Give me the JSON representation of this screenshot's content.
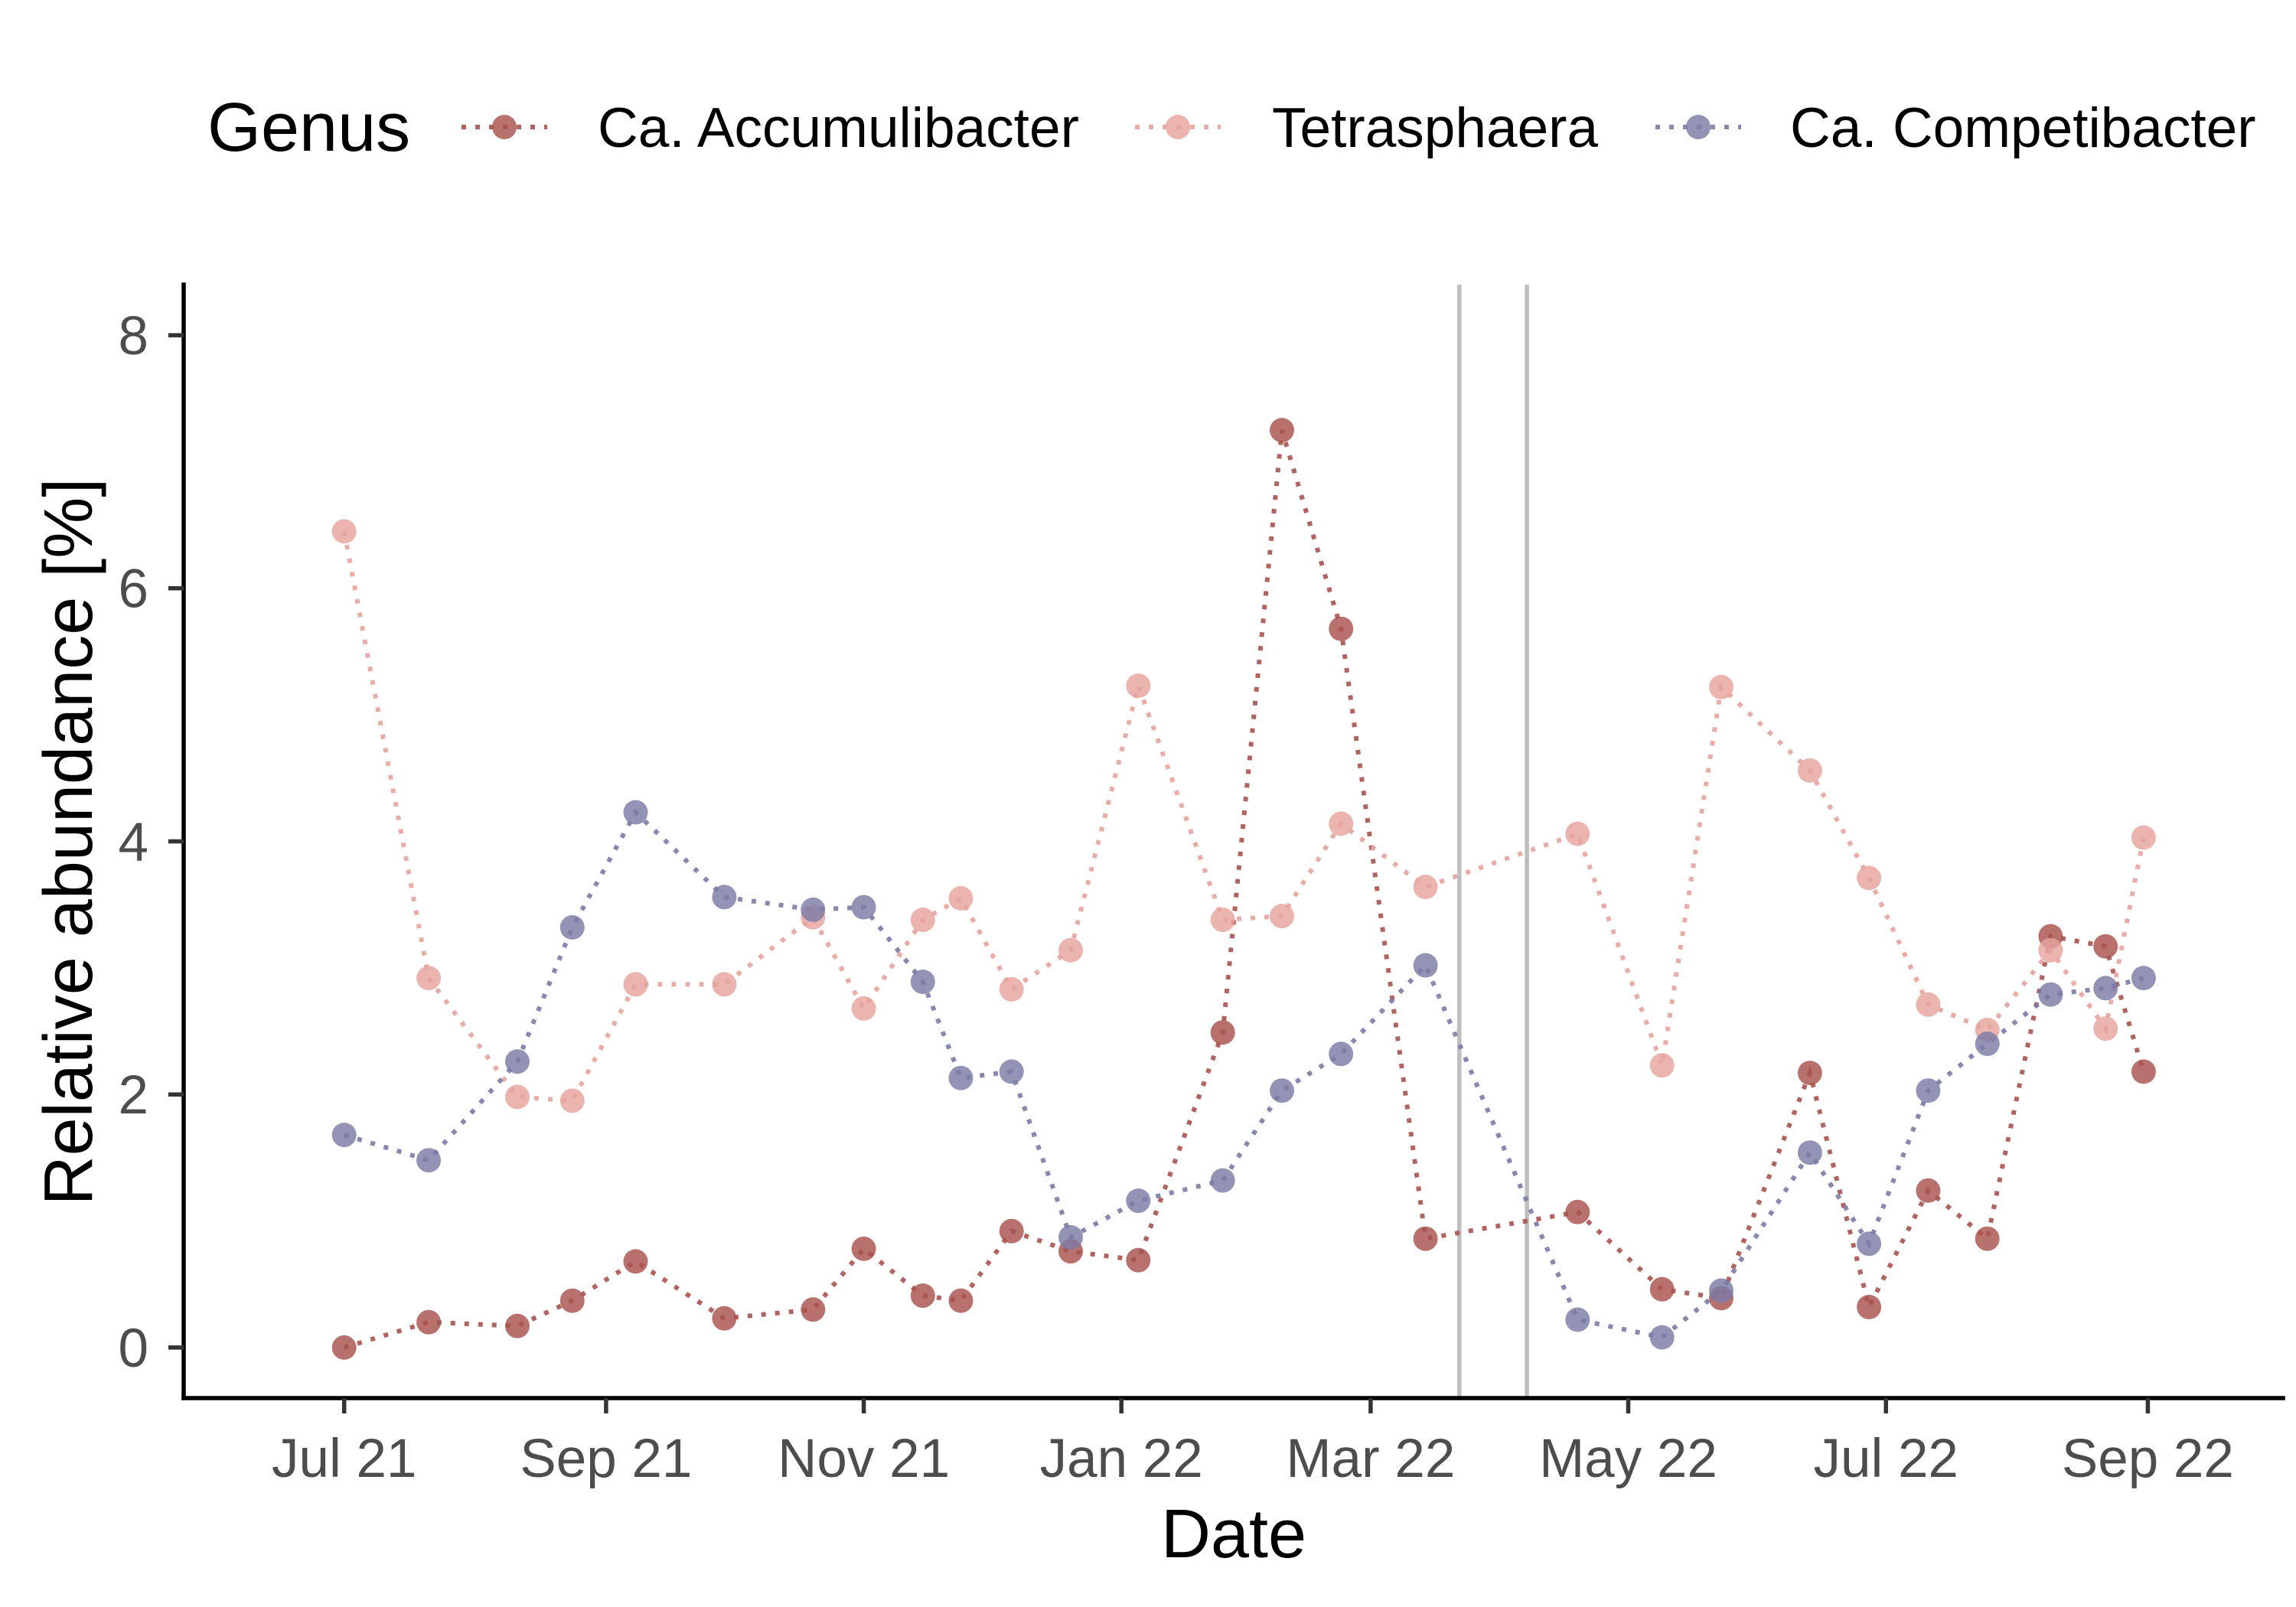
{
  "chart_data": {
    "type": "line",
    "markers": true,
    "line_style": "dotted",
    "xlabel": "Date",
    "ylabel": "Relative abundance [%]",
    "x_scale": "date",
    "xlim": [
      "2021-05-24",
      "2022-10-03"
    ],
    "ylim": [
      -0.4,
      8.4
    ],
    "x_ticks": [
      {
        "date": "2021-07-01",
        "label": "Jul 21"
      },
      {
        "date": "2021-09-01",
        "label": "Sep 21"
      },
      {
        "date": "2021-11-01",
        "label": "Nov 21"
      },
      {
        "date": "2022-01-01",
        "label": "Jan 22"
      },
      {
        "date": "2022-03-01",
        "label": "Mar 22"
      },
      {
        "date": "2022-05-01",
        "label": "May 22"
      },
      {
        "date": "2022-07-01",
        "label": "Jul 22"
      },
      {
        "date": "2022-09-01",
        "label": "Sep 22"
      }
    ],
    "y_ticks": [
      0,
      2,
      4,
      6,
      8
    ],
    "grid": false,
    "legend": {
      "title": "Genus",
      "position": "top"
    },
    "vlines": [
      "2022-03-22",
      "2022-04-07"
    ],
    "vline_color": "#bebebe",
    "x": [
      "2021-07-01",
      "2021-07-21",
      "2021-08-11",
      "2021-08-24",
      "2021-09-08",
      "2021-09-29",
      "2021-10-20",
      "2021-11-01",
      "2021-11-15",
      "2021-11-24",
      "2021-12-06",
      "2021-12-20",
      "2022-01-05",
      "2022-01-25",
      "2022-02-08",
      "2022-02-22",
      "2022-03-14",
      "2022-04-19",
      "2022-05-09",
      "2022-05-23",
      "2022-06-13",
      "2022-06-27",
      "2022-07-11",
      "2022-07-25",
      "2022-08-09",
      "2022-08-22",
      "2022-08-31"
    ],
    "series": [
      {
        "name": "Ca. Accumulibacter",
        "color": "#a9524e",
        "values": [
          0.0,
          0.2,
          0.17,
          0.37,
          0.68,
          0.23,
          0.3,
          0.78,
          0.41,
          0.37,
          0.92,
          0.76,
          0.69,
          2.49,
          7.25,
          5.68,
          0.86,
          1.07,
          0.46,
          0.39,
          2.17,
          0.32,
          1.24,
          0.86,
          3.25,
          3.17,
          2.18
        ]
      },
      {
        "name": "Tetrasphaera",
        "color": "#e6a49d",
        "values": [
          6.45,
          2.92,
          1.98,
          1.95,
          2.87,
          2.87,
          3.4,
          2.68,
          3.38,
          3.55,
          2.83,
          3.14,
          5.23,
          3.38,
          3.41,
          4.14,
          3.64,
          4.06,
          2.23,
          5.22,
          4.56,
          3.71,
          2.71,
          2.51,
          3.14,
          2.52,
          4.03
        ]
      },
      {
        "name": "Ca. Competibacter",
        "color": "#7b7ba6",
        "values": [
          1.68,
          1.48,
          2.26,
          3.32,
          4.23,
          3.56,
          3.46,
          3.48,
          2.89,
          2.13,
          2.18,
          0.87,
          1.16,
          1.32,
          2.03,
          2.32,
          3.02,
          0.22,
          0.08,
          0.45,
          1.54,
          0.82,
          2.03,
          2.4,
          2.79,
          2.84,
          2.92
        ]
      }
    ]
  }
}
